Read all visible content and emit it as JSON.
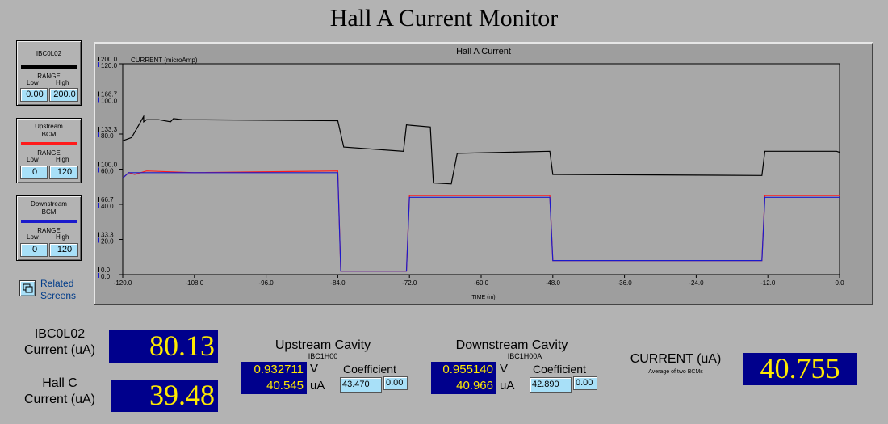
{
  "title": "Hall A Current Monitor",
  "legends": [
    {
      "name": "IBC0L02",
      "color": "#000000",
      "range_label": "RANGE",
      "low_label": "Low",
      "high_label": "High",
      "low": "0.00",
      "high": "200.0"
    },
    {
      "name_line1": "Upstream",
      "name_line2": "BCM",
      "color": "#ff1a1a",
      "range_label": "RANGE",
      "low_label": "Low",
      "high_label": "High",
      "low": "0",
      "high": "120"
    },
    {
      "name_line1": "Downstream",
      "name_line2": "BCM",
      "color": "#1a1acc",
      "range_label": "RANGE",
      "low_label": "Low",
      "high_label": "High",
      "low": "0",
      "high": "120"
    }
  ],
  "related_screens": "Related Screens",
  "chart_data": {
    "type": "line",
    "title": "Hall A Current",
    "ylabel": "CURRENT (microAmp)",
    "xlabel": "TIME (m)",
    "xlim": [
      -120,
      0
    ],
    "x_ticks": [
      "-120.0",
      "-108.0",
      "-96.0",
      "-84.0",
      "-72.0",
      "-60.0",
      "-48.0",
      "-36.0",
      "-24.0",
      "-12.0",
      "0.0"
    ],
    "y_ticks_black": [
      "0.0",
      "33.3",
      "66.7",
      "100.0",
      "133.3",
      "166.7",
      "200.0"
    ],
    "y_ticks_colored": [
      "0.0",
      "20.0",
      "40.0",
      "60.0",
      "80.0",
      "100.0",
      "120.0"
    ],
    "series": [
      {
        "color": "#000000",
        "ylim": [
          0,
          200
        ],
        "x": [
          -120,
          -118.5,
          -117.5,
          -116.5,
          -116.5,
          -116,
          -114,
          -112,
          -111.5,
          -110,
          -84,
          -83,
          -73,
          -72.5,
          -68.5,
          -68,
          -65,
          -64,
          -48.5,
          -48,
          -13,
          -12.5,
          -0.5,
          0
        ],
        "y": [
          127,
          130,
          140,
          150,
          145,
          147,
          147,
          145,
          148,
          147,
          146,
          121,
          117,
          142,
          140,
          87,
          86,
          115,
          117,
          95,
          94,
          117,
          117,
          116
        ]
      },
      {
        "color": "#ff1a1a",
        "ylim": [
          0,
          120
        ],
        "x": [
          -120,
          -119,
          -118,
          -117,
          -116,
          -108,
          -84,
          -83.5,
          -72.5,
          -72,
          -68,
          -65,
          -60,
          -48.5,
          -48,
          -13,
          -12.5,
          -0.5,
          0
        ],
        "y": [
          55,
          58,
          57,
          58,
          59,
          58,
          59,
          2,
          2,
          45,
          45,
          45,
          45,
          45,
          8,
          8,
          45,
          45,
          45
        ]
      },
      {
        "color": "#1a1acc",
        "ylim": [
          0,
          120
        ],
        "x": [
          -120,
          -119,
          -118,
          -117,
          -116,
          -108,
          -84,
          -83.5,
          -72.5,
          -72,
          -68,
          -65,
          -60,
          -48.5,
          -48,
          -13,
          -12.5,
          -0.5,
          0
        ],
        "y": [
          55,
          58,
          58,
          58,
          58,
          58,
          58,
          2,
          2,
          44,
          44,
          44,
          44,
          44,
          8,
          8,
          44,
          44,
          44
        ]
      }
    ]
  },
  "readouts": {
    "ibc_label": "IBC0L02\nCurrent (uA)",
    "ibc_value": "80.13",
    "hallc_label": "Hall C\nCurrent (uA)",
    "hallc_value": "39.48",
    "upstream": {
      "title": "Upstream Cavity",
      "sub": "IBC1H00",
      "volts": "0.932711",
      "v_unit": "V",
      "ua": "40.545",
      "ua_unit": "uA",
      "coef_label": "Coefficient",
      "coef": "43.470",
      "offset": "0.00"
    },
    "downstream": {
      "title": "Downstream Cavity",
      "sub": "IBC1H00A",
      "volts": "0.955140",
      "v_unit": "V",
      "ua": "40.966",
      "ua_unit": "uA",
      "coef_label": "Coefficient",
      "coef": "42.890",
      "offset": "0.00"
    },
    "current_label": "CURRENT (uA)",
    "current_sub": "Average of two BCMs",
    "current_value": "40.755"
  }
}
